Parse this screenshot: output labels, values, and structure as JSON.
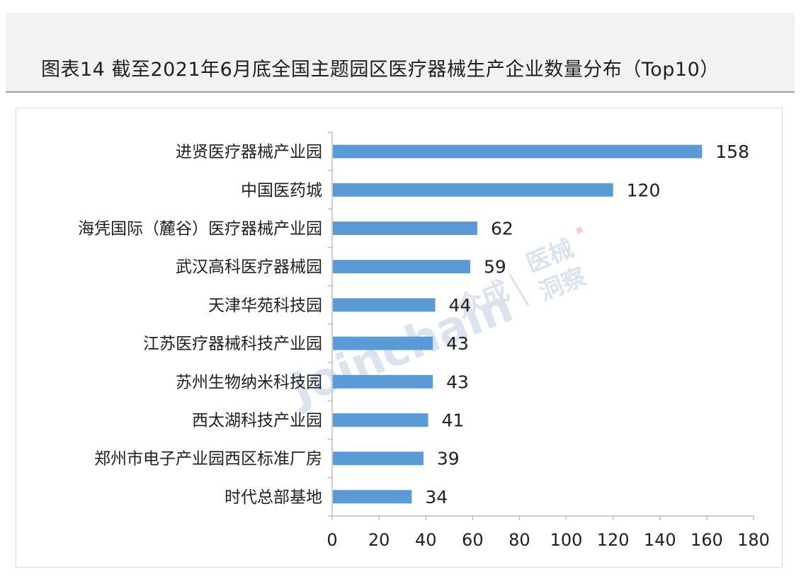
{
  "title": "图表14  截至2021年6月底全国主题园区医疗器械生产企业数量分布（Top10）",
  "watermark": {
    "brand_latin": "Joinchain",
    "brand_cn": "众成",
    "side_line1": "医械",
    "side_line2": "洞察"
  },
  "colors": {
    "bar": "#5b9bd5",
    "axis": "#bfbfbf",
    "text": "#1f1f1f"
  },
  "chart_data": {
    "type": "bar",
    "orientation": "horizontal",
    "categories": [
      "进贤医疗器械产业园",
      "中国医药城",
      "海凭国际（麓谷）医疗器械产业园",
      "武汉高科医疗器械园",
      "天津华苑科技园",
      "江苏医疗器械科技产业园",
      "苏州生物纳米科技园",
      "西太湖科技产业园",
      "郑州市电子产业园西区标准厂房",
      "时代总部基地"
    ],
    "values": [
      158,
      120,
      62,
      59,
      44,
      43,
      43,
      41,
      39,
      34
    ],
    "xlim": [
      0,
      180
    ],
    "xticks": [
      0,
      20,
      40,
      60,
      80,
      100,
      120,
      140,
      160,
      180
    ],
    "data_labels": true,
    "grid": false,
    "legend": "none"
  }
}
